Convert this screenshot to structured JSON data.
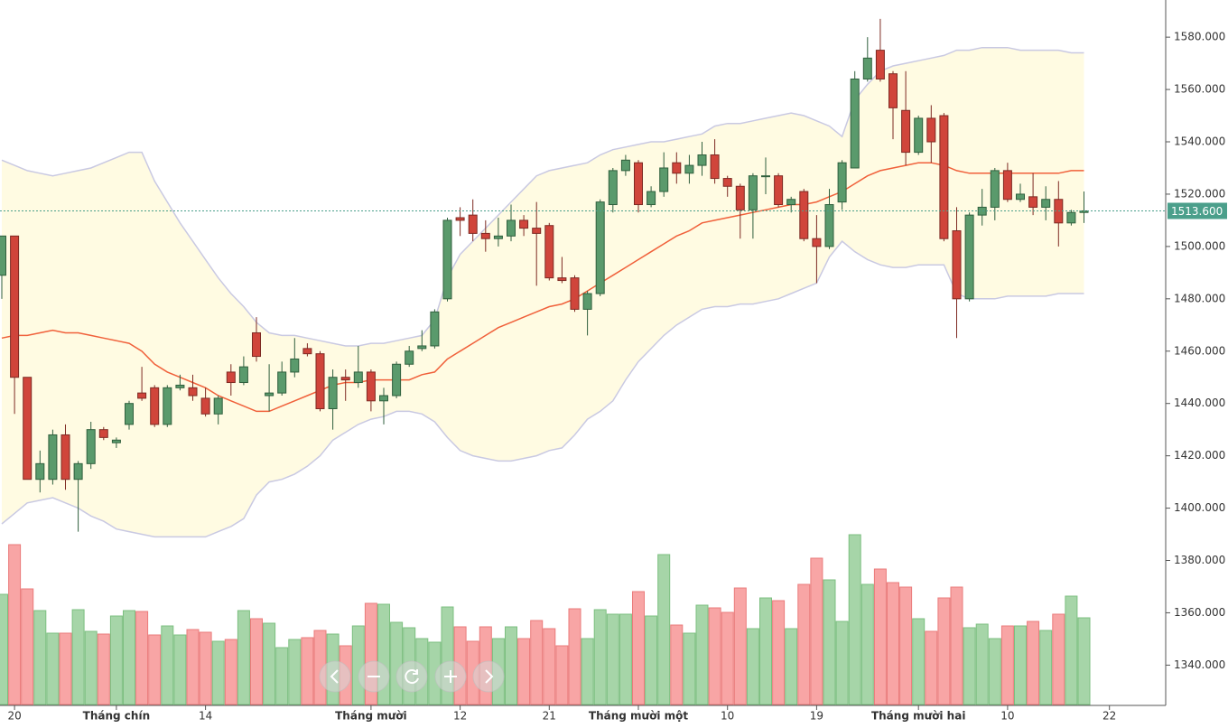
{
  "chart_data": {
    "type": "candlestick",
    "categories": [
      null,
      "20",
      null,
      null,
      null,
      null,
      null,
      null,
      null,
      "Tháng chín",
      null,
      null,
      null,
      null,
      null,
      null,
      "14",
      null,
      null,
      null,
      null,
      null,
      null,
      null,
      null,
      null,
      null,
      null,
      null,
      "Tháng mười",
      null,
      null,
      null,
      null,
      null,
      null,
      "12",
      null,
      null,
      null,
      null,
      null,
      null,
      "21",
      null,
      null,
      null,
      null,
      null,
      null,
      "Tháng mười một",
      null,
      null,
      null,
      null,
      null,
      null,
      "10",
      null,
      null,
      null,
      null,
      null,
      null,
      "19",
      null,
      null,
      null,
      null,
      null,
      null,
      null,
      "Tháng mười hai",
      null,
      null,
      null,
      null,
      null,
      null,
      "10",
      null,
      null,
      null,
      null,
      null,
      null,
      null,
      "22"
    ],
    "open": [
      1489,
      1504,
      1450,
      1411,
      1411,
      1428,
      1411,
      1417,
      1430,
      1425,
      1432,
      1444,
      1446,
      1432,
      1446,
      1446,
      1442,
      1436,
      1452,
      1448,
      1467,
      1443,
      1444,
      1452,
      1461,
      1459,
      1438,
      1450,
      1448,
      1452,
      1441,
      1443,
      1455,
      1461,
      1462,
      1480,
      1511,
      1512,
      1505,
      1503,
      1504,
      1510,
      1507,
      1508,
      1488,
      1488,
      1476,
      1482,
      1516,
      1529,
      1532,
      1516,
      1521,
      1532,
      1528,
      1531,
      1535,
      1526,
      1523,
      1514,
      1527,
      1527,
      1516,
      1521,
      1503,
      1500,
      1517,
      1530,
      1564,
      1575,
      1566,
      1552,
      1536,
      1549,
      1550,
      1506,
      1480,
      1512,
      1515,
      1529,
      1518,
      1519,
      1515,
      1518,
      1509,
      1513,
      null,
      null
    ],
    "high": [
      1504,
      1504,
      1450,
      1422,
      1430,
      1432,
      1418,
      1433,
      1431,
      1427,
      1441,
      1454,
      1447,
      1447,
      1451,
      1451,
      1446,
      1443,
      1455,
      1458,
      1473,
      1455,
      1456,
      1465,
      1463,
      1460,
      1453,
      1453,
      1462,
      1453,
      1446,
      1456,
      1462,
      1468,
      1476,
      1511,
      1515,
      1518,
      1510,
      1511,
      1516,
      1512,
      1517,
      1509,
      1496,
      1489,
      1483,
      1518,
      1530,
      1535,
      1533,
      1523,
      1536,
      1536,
      1535,
      1540,
      1541,
      1527,
      1524,
      1528,
      1534,
      1528,
      1519,
      1522,
      1512,
      1522,
      1533,
      1567,
      1580,
      1587,
      1567,
      1567,
      1550,
      1554,
      1551,
      1515,
      1513,
      1522,
      1530,
      1532,
      1524,
      1528,
      1523,
      1525,
      1514,
      1521,
      null,
      null
    ],
    "low": [
      1480,
      1436,
      1411,
      1406,
      1409,
      1407,
      1391,
      1415,
      1426,
      1423,
      1430,
      1441,
      1431,
      1431,
      1445,
      1441,
      1435,
      1432,
      1443,
      1447,
      1456,
      1437,
      1443,
      1450,
      1458,
      1437,
      1430,
      1441,
      1446,
      1437,
      1432,
      1442,
      1454,
      1460,
      1461,
      1479,
      1504,
      1502,
      1498,
      1500,
      1502,
      1504,
      1485,
      1487,
      1486,
      1475,
      1466,
      1481,
      1513,
      1527,
      1513,
      1515,
      1519,
      1524,
      1524,
      1527,
      1524,
      1519,
      1503,
      1503,
      1520,
      1515,
      1513,
      1502,
      1486,
      1499,
      1514,
      1530,
      1563,
      1563,
      1541,
      1531,
      1535,
      1532,
      1502,
      1465,
      1479,
      1508,
      1510,
      1517,
      1517,
      1512,
      1510,
      1500,
      1508,
      1509,
      null,
      null
    ],
    "close": [
      1504,
      1450,
      1411,
      1417,
      1428,
      1411,
      1417,
      1430,
      1427,
      1426,
      1440,
      1442,
      1432,
      1446,
      1447,
      1443,
      1436,
      1442,
      1448,
      1454,
      1458,
      1444,
      1452,
      1457,
      1459,
      1438,
      1450,
      1449,
      1452,
      1441,
      1443,
      1455,
      1460,
      1462,
      1475,
      1510,
      1510,
      1505,
      1503,
      1504,
      1510,
      1507,
      1505,
      1488,
      1487,
      1476,
      1482,
      1517,
      1529,
      1533,
      1516,
      1521,
      1530,
      1528,
      1531,
      1535,
      1526,
      1523,
      1514,
      1527,
      1527,
      1516,
      1518,
      1503,
      1500,
      1516,
      1532,
      1564,
      1572,
      1564,
      1553,
      1536,
      1549,
      1540,
      1503,
      1480,
      1512,
      1515,
      1529,
      1518,
      1520,
      1515,
      1518,
      1509,
      1513,
      1513.6,
      null,
      null
    ],
    "volume": [
      122,
      177,
      128,
      104,
      79,
      79,
      105,
      81,
      78,
      98,
      104,
      103,
      77,
      87,
      77,
      83,
      80,
      70,
      72,
      104,
      95,
      90,
      63,
      72,
      74,
      82,
      78,
      65,
      87,
      112,
      111,
      91,
      85,
      73,
      69,
      108,
      86,
      70,
      86,
      73,
      86,
      73,
      93,
      84,
      65,
      106,
      73,
      105,
      100,
      100,
      125,
      98,
      166,
      88,
      79,
      110,
      107,
      102,
      129,
      84,
      118,
      115,
      84,
      133,
      162,
      138,
      92,
      188,
      133,
      150,
      135,
      130,
      95,
      81,
      118,
      130,
      85,
      89,
      73,
      87,
      87,
      92,
      82,
      100,
      120,
      96,
      null,
      null
    ],
    "bands": {
      "upper": [
        1533,
        1531,
        1529,
        1528,
        1527,
        1528,
        1529,
        1530,
        1532,
        1534,
        1536,
        1536,
        1525,
        1517,
        1509,
        1502,
        1495,
        1488,
        1482,
        1477,
        1471,
        1467,
        1466,
        1466,
        1465,
        1464,
        1463,
        1462,
        1462,
        1463,
        1463,
        1464,
        1465,
        1466,
        1472,
        1488,
        1497,
        1502,
        1507,
        1512,
        1517,
        1522,
        1527,
        1529,
        1530,
        1531,
        1532,
        1535,
        1537,
        1538,
        1539,
        1540,
        1540,
        1541,
        1542,
        1543,
        1546,
        1547,
        1547,
        1548,
        1549,
        1550,
        1551,
        1550,
        1548,
        1546,
        1542,
        1556,
        1562,
        1567,
        1569,
        1570,
        1571,
        1572,
        1573,
        1575,
        1575,
        1576,
        1576,
        1576,
        1575,
        1575,
        1575,
        1575,
        1574,
        1574,
        null,
        null
      ],
      "middle": [
        1465,
        1466,
        1466,
        1467,
        1468,
        1467,
        1467,
        1466,
        1465,
        1464,
        1463,
        1460,
        1455,
        1452,
        1450,
        1448,
        1446,
        1443,
        1441,
        1439,
        1437,
        1437,
        1439,
        1441,
        1443,
        1445,
        1447,
        1448,
        1448,
        1449,
        1449,
        1449,
        1449,
        1451,
        1452,
        1457,
        1460,
        1463,
        1466,
        1469,
        1471,
        1473,
        1475,
        1477,
        1478,
        1480,
        1483,
        1486,
        1489,
        1492,
        1495,
        1498,
        1501,
        1504,
        1506,
        1509,
        1510,
        1511,
        1512,
        1513,
        1514,
        1515,
        1516,
        1516,
        1517,
        1519,
        1521,
        1524,
        1527,
        1529,
        1530,
        1531,
        1532,
        1532,
        1531,
        1529,
        1528,
        1528,
        1528,
        1528,
        1528,
        1528,
        1528,
        1528,
        1529,
        1529,
        null,
        null
      ],
      "lower": [
        1394,
        1398,
        1402,
        1403,
        1404,
        1402,
        1400,
        1397,
        1395,
        1392,
        1391,
        1390,
        1389,
        1389,
        1389,
        1389,
        1389,
        1391,
        1393,
        1396,
        1405,
        1410,
        1411,
        1413,
        1416,
        1420,
        1426,
        1429,
        1432,
        1434,
        1435,
        1437,
        1437,
        1436,
        1433,
        1427,
        1422,
        1420,
        1419,
        1418,
        1418,
        1419,
        1420,
        1422,
        1423,
        1428,
        1434,
        1437,
        1441,
        1449,
        1456,
        1461,
        1466,
        1470,
        1473,
        1476,
        1477,
        1477,
        1478,
        1478,
        1479,
        1480,
        1482,
        1484,
        1486,
        1496,
        1502,
        1498,
        1495,
        1493,
        1492,
        1492,
        1493,
        1493,
        1493,
        1482,
        1480,
        1480,
        1480,
        1481,
        1481,
        1481,
        1481,
        1482,
        1482,
        1482,
        null,
        null
      ]
    },
    "last_price": {
      "value": 1513.6,
      "label": "1513.600"
    },
    "ylim": [
      1324.6,
      1594.2
    ],
    "yticks": [
      {
        "value": 1340,
        "label": "1340.000"
      },
      {
        "value": 1360,
        "label": "1360.000"
      },
      {
        "value": 1380,
        "label": "1380.000"
      },
      {
        "value": 1400,
        "label": "1400.000"
      },
      {
        "value": 1420,
        "label": "1420.000"
      },
      {
        "value": 1440,
        "label": "1440.000"
      },
      {
        "value": 1460,
        "label": "1460.000"
      },
      {
        "value": 1480,
        "label": "1480.000"
      },
      {
        "value": 1500,
        "label": "1500.000"
      },
      {
        "value": 1520,
        "label": "1520.000"
      },
      {
        "value": 1540,
        "label": "1540.000"
      },
      {
        "value": 1560,
        "label": "1560.000"
      },
      {
        "value": 1580,
        "label": "1580.000"
      }
    ],
    "up_color": "#5a9a6c",
    "down_color": "#d0453b",
    "volume_up_color": "#a6d5a8",
    "volume_down_color": "#f8a5a5",
    "band_fill": "#fffbe2",
    "band_stroke": "#c9c9e2",
    "middle_color": "#f0603a",
    "last_price_color": "#4b9f8b"
  }
}
